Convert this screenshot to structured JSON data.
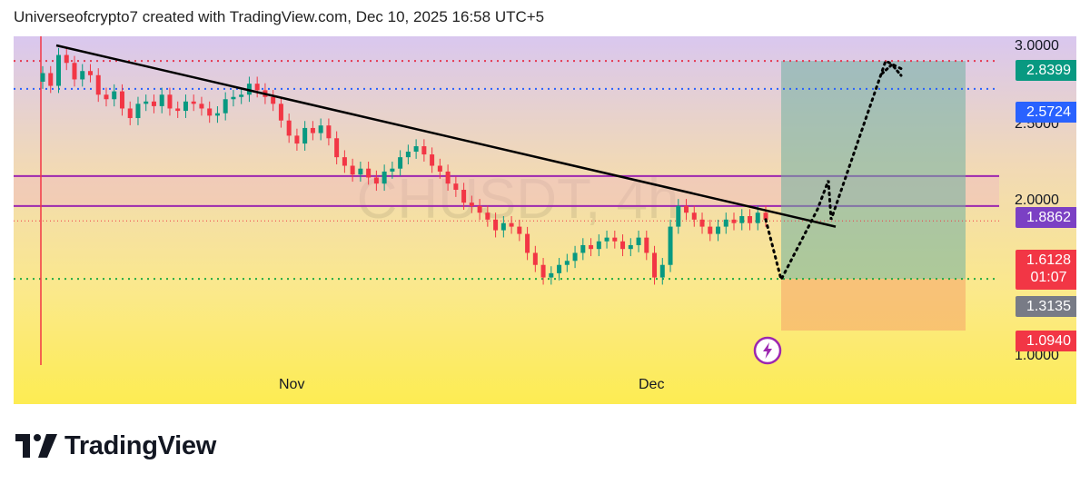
{
  "header": {
    "attribution": "Universeofcrypto7 created with TradingView.com, Dec 10, 2025 16:58 UTC+5"
  },
  "brand": {
    "name": "TradingView",
    "logo_icon": "tradingview-logo-icon"
  },
  "chart_data": {
    "type": "candlestick",
    "watermark": "CHUSDT, 4h",
    "y_axis": {
      "scale": "log",
      "ticks": [
        "3.0000",
        "2.5000",
        "2.0000",
        "1.0000"
      ]
    },
    "x_axis": {
      "ticks": [
        "Nov",
        "Dec"
      ]
    },
    "price_levels": [
      {
        "name": "target-high",
        "value": "2.8399",
        "color": "#089981",
        "line": "dotted-red"
      },
      {
        "name": "resistance-blue",
        "value": "2.5724",
        "color": "#2962ff",
        "line": "dotted-blue"
      },
      {
        "name": "resistance-zone",
        "value": "1.8862",
        "color": "#7b40c4",
        "line": "purple-band"
      },
      {
        "name": "last-price",
        "value": "1.6128",
        "countdown": "01:07",
        "color": "#f23645"
      },
      {
        "name": "entry",
        "value": "1.3135",
        "color": "#787b86",
        "line": "dotted-green"
      },
      {
        "name": "stop",
        "value": "1.0940",
        "color": "#f23645"
      }
    ],
    "zones": [
      {
        "name": "purple-resistance-zone",
        "from": 1.7,
        "to": 1.89
      },
      {
        "name": "profit-zone",
        "from": 1.3135,
        "to": 2.8399
      },
      {
        "name": "loss-zone",
        "from": 1.094,
        "to": 1.3135
      }
    ],
    "trendline": {
      "from": 3.0,
      "to": 1.58,
      "style": "solid-black"
    },
    "projection": {
      "style": "dotted-black",
      "path": [
        1.62,
        1.31,
        1.68,
        1.86,
        1.62,
        2.84,
        2.75
      ]
    },
    "candles_close": [
      2.72,
      2.6,
      2.9,
      2.82,
      2.66,
      2.74,
      2.7,
      2.52,
      2.48,
      2.55,
      2.4,
      2.32,
      2.44,
      2.46,
      2.42,
      2.52,
      2.4,
      2.38,
      2.46,
      2.44,
      2.4,
      2.34,
      2.36,
      2.48,
      2.5,
      2.52,
      2.62,
      2.56,
      2.5,
      2.44,
      2.3,
      2.18,
      2.12,
      2.24,
      2.2,
      2.26,
      2.16,
      2.02,
      1.96,
      1.9,
      1.94,
      1.88,
      1.84,
      1.92,
      1.94,
      2.02,
      2.06,
      2.1,
      2.04,
      1.96,
      1.92,
      1.84,
      1.8,
      1.72,
      1.7,
      1.66,
      1.62,
      1.56,
      1.6,
      1.58,
      1.54,
      1.44,
      1.38,
      1.32,
      1.34,
      1.38,
      1.4,
      1.44,
      1.48,
      1.46,
      1.5,
      1.52,
      1.5,
      1.46,
      1.48,
      1.52,
      1.44,
      1.32,
      1.38,
      1.58,
      1.7,
      1.66,
      1.62,
      1.58,
      1.54,
      1.58,
      1.62,
      1.6,
      1.64,
      1.6,
      1.66,
      1.62
    ]
  }
}
